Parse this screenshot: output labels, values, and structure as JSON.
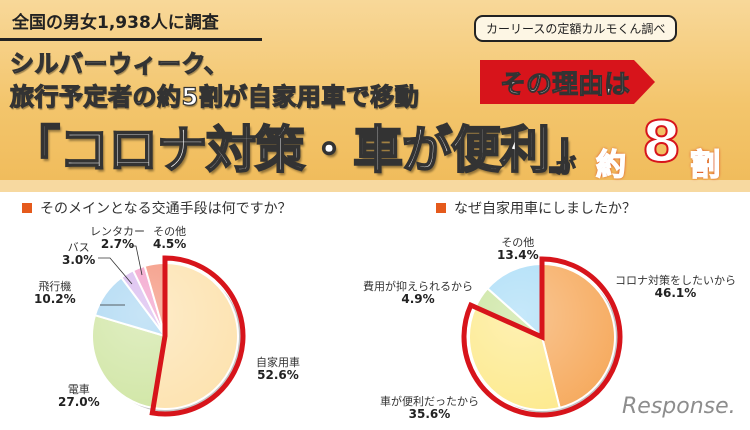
{
  "header": {
    "survey_title": "全国の男女1,938人に調査",
    "source_badge": "カーリースの定額カルモくん調べ",
    "headline_line1": "シルバーウィーク、",
    "headline_line2": "旅行予定者の約5割が自家用車で移動",
    "reason_tag": "その理由は",
    "big_claim": "「コロナ対策・車が便利」",
    "ga": "が",
    "yaku": "約",
    "eight": "8",
    "wari": "割"
  },
  "logo": "Response.",
  "colors": {
    "header_bg": "#f3c56c",
    "accent_red": "#d7141b",
    "question_square": "#e55a1c"
  },
  "chart_data": [
    {
      "type": "pie",
      "title": "そのメインとなる交通手段は何ですか？",
      "categories": [
        "自家用車",
        "電車",
        "飛行機",
        "バス",
        "レンタカー",
        "その他"
      ],
      "values": [
        52.6,
        27.0,
        10.2,
        3.0,
        2.7,
        4.5
      ],
      "labels": [
        "52.6%",
        "27.0%",
        "10.2%",
        "3.0%",
        "2.7%",
        "4.5%"
      ],
      "colors": [
        "#fde2ae",
        "#cfe5a2",
        "#a9d6f2",
        "#d7b7ee",
        "#f29cc8",
        "#f49078"
      ],
      "highlighted": [
        "自家用車"
      ],
      "start_angle": "12 o'clock, clockwise"
    },
    {
      "type": "pie",
      "title": "なぜ自家用車にしましたか？",
      "categories": [
        "コロナ対策をしたいから",
        "車が便利だったから",
        "費用が抑えられるから",
        "その他"
      ],
      "values": [
        46.1,
        35.6,
        4.9,
        13.4
      ],
      "labels": [
        "46.1%",
        "35.6%",
        "4.9%",
        "13.4%"
      ],
      "colors": [
        "#f6a85a",
        "#fde98a",
        "#c7e39a",
        "#a8dcf7"
      ],
      "highlighted": [
        "コロナ対策をしたいから",
        "車が便利だったから"
      ],
      "start_angle": "12 o'clock, clockwise"
    }
  ]
}
